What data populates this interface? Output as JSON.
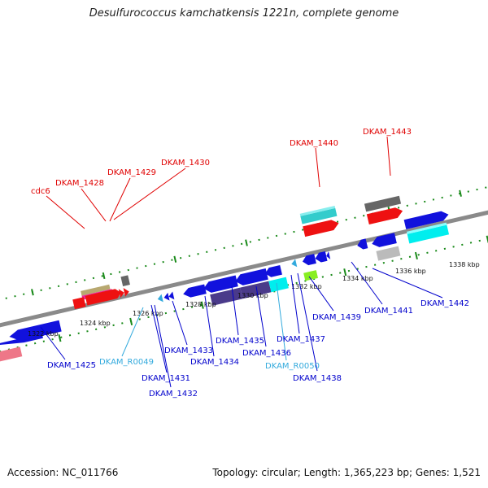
{
  "title": "Desulfurococcus kamchatkensis 1221n, complete genome",
  "footer": {
    "accession": "Accession: NC_011766",
    "summary": "Topology: circular; Length: 1,365,223 bp; Genes: 1,521"
  },
  "colors": {
    "backbone": "#8a8a8a",
    "forward_ticks": "#1a8a1a",
    "red_label": "#e00000",
    "blue_label": "#0000cc",
    "cyan_label": "#33aadd"
  },
  "ticks": [
    "1322 kbp",
    "1324 kbp",
    "1326 kbp",
    "1328 kbp",
    "1330 kbp",
    "1332 kbp",
    "1334 kbp",
    "1336 kbp",
    "1338 kbp"
  ],
  "labels": {
    "cdc6": "cdc6",
    "dkam_1425": "DKAM_1425",
    "dkam_1428": "DKAM_1428",
    "dkam_1429": "DKAM_1429",
    "dkam_1430": "DKAM_1430",
    "dkam_1431": "DKAM_1431",
    "dkam_1432": "DKAM_1432",
    "dkam_1433": "DKAM_1433",
    "dkam_1434": "DKAM_1434",
    "dkam_1435": "DKAM_1435",
    "dkam_1436": "DKAM_1436",
    "dkam_1437": "DKAM_1437",
    "dkam_1438": "DKAM_1438",
    "dkam_1439": "DKAM_1439",
    "dkam_1440": "DKAM_1440",
    "dkam_1441": "DKAM_1441",
    "dkam_1442": "DKAM_1442",
    "dkam_1443": "DKAM_1443",
    "dkam_r0049": "DKAM_R0049",
    "dkam_r0050": "DKAM_R0050"
  }
}
